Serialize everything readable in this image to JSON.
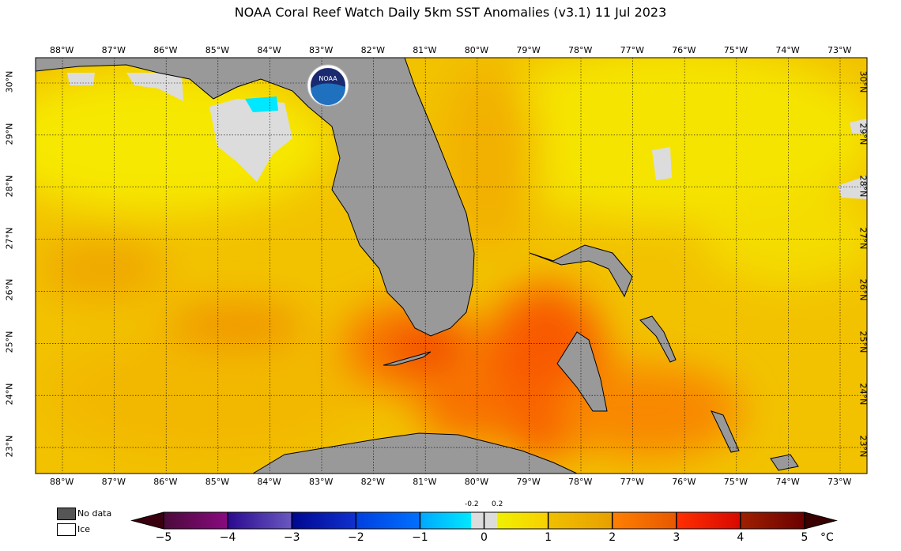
{
  "title": "NOAA Coral Reef Watch Daily 5km SST Anomalies  (v3.1)   11 Jul 2023",
  "logo_text": "NOAA",
  "longitudes": [
    "88°W",
    "87°W",
    "86°W",
    "85°W",
    "84°W",
    "83°W",
    "82°W",
    "81°W",
    "80°W",
    "79°W",
    "78°W",
    "77°W",
    "76°W",
    "75°W",
    "74°W",
    "73°W"
  ],
  "latitudes": [
    "30°N",
    "29°N",
    "28°N",
    "27°N",
    "26°N",
    "25°N",
    "24°N",
    "23°N"
  ],
  "legend": {
    "nodata": "No data",
    "ice": "Ice",
    "nodata_color": "#555555",
    "ice_color": "#ffffff",
    "land_color": "#999999"
  },
  "colorbar": {
    "ticks": [
      "−5",
      "−4",
      "−3",
      "−2",
      "−1",
      "0",
      "1",
      "2",
      "3",
      "4",
      "5"
    ],
    "small_ticks": [
      "-0.2",
      "0.2"
    ],
    "unit": "°C",
    "bins": [
      [
        "#4a0a3a",
        "#8a0a80"
      ],
      [
        "#2a0a90",
        "#6a58c0"
      ],
      [
        "#000890",
        "#1030d0"
      ],
      [
        "#0040e0",
        "#0070ff"
      ],
      [
        "#00a8ff",
        "#00e8ff"
      ],
      [
        "#dcdcdc",
        "#dcdcdc"
      ],
      [
        "#f0f000",
        "#f8d000"
      ],
      [
        "#f0c000",
        "#e8a000"
      ],
      [
        "#ff8000",
        "#e85800"
      ],
      [
        "#ff3000",
        "#d80800"
      ],
      [
        "#a02000",
        "#6a0000"
      ]
    ],
    "end_colors": [
      "#3a0010",
      "#3a0000"
    ]
  }
}
